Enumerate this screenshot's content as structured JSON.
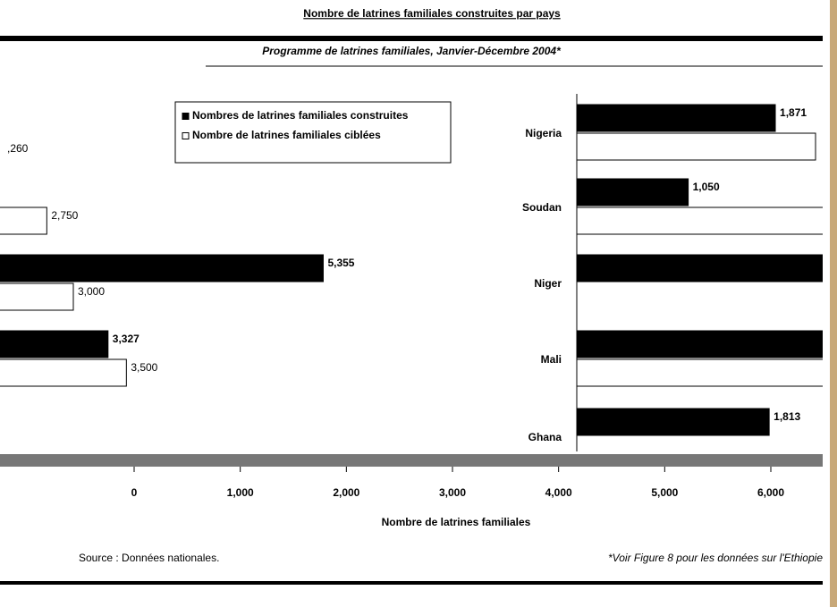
{
  "chart_data": [
    {
      "type": "bar",
      "title": "Nombre de latrines familiales construites par pays",
      "subtitle": "Programme de latrines familiales, Janvier-Décembre 2004*",
      "x_label": "Nombre de latrines familiales",
      "annotation": ",260",
      "categories": [
        null,
        null,
        null
      ],
      "series": [
        {
          "name": "Nombres de latrines familiales construites",
          "color": "#000000",
          "values": [
            null,
            5355,
            3327
          ],
          "value_labels": [
            null,
            "5,355",
            "3,327"
          ]
        },
        {
          "name": "Nombre de latrines familiales ciblées",
          "color": "#ffffff",
          "values": [
            2750,
            3000,
            3500
          ],
          "value_labels": [
            "2,750",
            "3,000",
            "3,500"
          ]
        }
      ],
      "xlim": [
        0,
        6000
      ],
      "xticks": [
        0,
        {
          "value": 1000,
          "label": "1,000"
        },
        {
          "value": 2000,
          "label": "2,000"
        },
        {
          "value": 3000,
          "label": "3,000"
        },
        {
          "value": 4000,
          "label": "4,000"
        },
        {
          "value": 5000,
          "label": "5,000"
        },
        {
          "value": 6000,
          "label": "6,000"
        }
      ],
      "legend": "upper-center"
    },
    {
      "type": "bar",
      "categories": [
        "Nigeria",
        "Soudan",
        "Niger",
        "Mali",
        "Ghana"
      ],
      "series": [
        {
          "color": "#000000",
          "values": [
            1871,
            1050,
            2500,
            2500,
            1813
          ],
          "value_labels": [
            "1,871",
            "1,050",
            null,
            null,
            "1,813"
          ]
        },
        {
          "color": "#ffffff",
          "values": [
            2250,
            2500,
            null,
            2400,
            null
          ]
        }
      ]
    }
  ],
  "source": "Source : Données nationales.",
  "note": "*Voir Figure 8 pour les données sur l'Ethiopie"
}
